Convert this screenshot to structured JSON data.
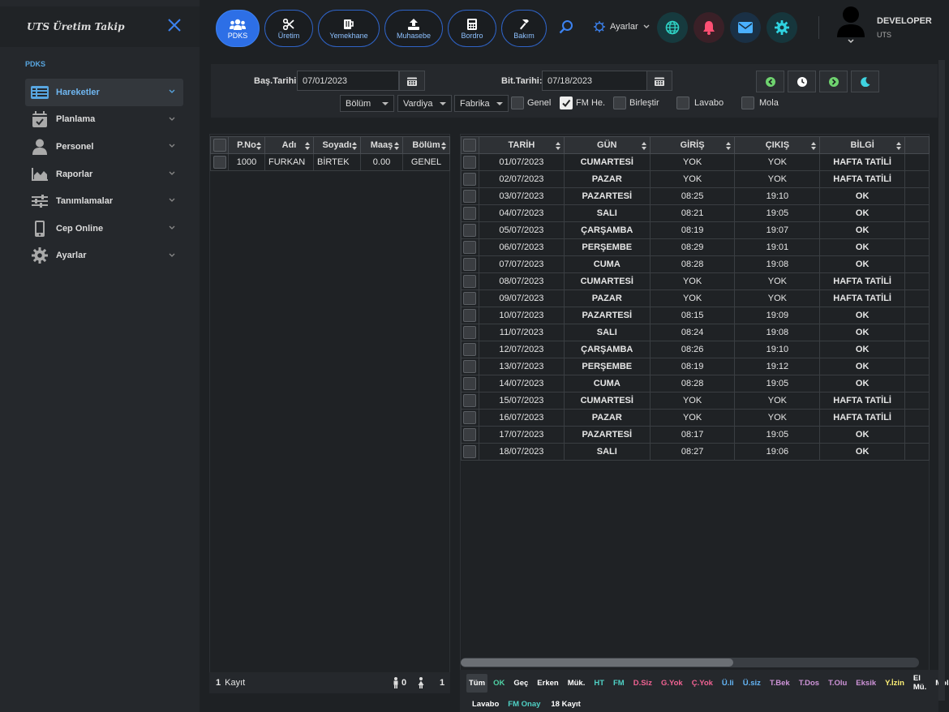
{
  "app": {
    "title": "UTS Üretim Takip"
  },
  "sidebar": {
    "section": "PDKS",
    "items": [
      {
        "label": "Hareketler",
        "icon": "list-icon",
        "active": true
      },
      {
        "label": "Planlama",
        "icon": "calendar-check-icon"
      },
      {
        "label": "Personel",
        "icon": "user-icon"
      },
      {
        "label": "Raporlar",
        "icon": "chart-area-icon"
      },
      {
        "label": "Tanımlamalar",
        "icon": "sliders-icon"
      },
      {
        "label": "Cep Online",
        "icon": "mobile-icon"
      },
      {
        "label": "Ayarlar",
        "icon": "gear-icon"
      }
    ]
  },
  "topnav": {
    "buttons": [
      {
        "label": "PDKS",
        "icon": "users-icon",
        "active": true
      },
      {
        "label": "Üretim",
        "icon": "scissors-icon"
      },
      {
        "label": "Yemekhane",
        "icon": "mug-icon"
      },
      {
        "label": "Muhasebe",
        "icon": "upload-icon"
      },
      {
        "label": "Bordro",
        "icon": "calculator-icon"
      },
      {
        "label": "Bakım",
        "icon": "hammer-icon"
      }
    ],
    "settings_label": "Ayarlar",
    "user": {
      "name": "DEVELOPER",
      "company": "UTS"
    }
  },
  "filters": {
    "start_label": "Baş.Tarihi:",
    "start_value": "07/01/2023",
    "end_label": "Bit.Tarihi:",
    "end_value": "07/18/2023",
    "dropdowns": [
      "Bölüm",
      "Vardiya",
      "Fabrika"
    ],
    "checks": [
      {
        "label": "Genel",
        "checked": false
      },
      {
        "label": "FM He.",
        "checked": true
      },
      {
        "label": "Birleştir",
        "checked": false
      },
      {
        "label": "Lavabo",
        "checked": false
      },
      {
        "label": "Mola",
        "checked": false
      }
    ]
  },
  "people": {
    "columns": [
      "P.No",
      "Adı",
      "Soyadı",
      "Maaş",
      "Bölüm"
    ],
    "rows": [
      [
        "1000",
        "FURKAN",
        "BİRTEK",
        "0.00",
        "GENEL"
      ]
    ],
    "footer_count": "1",
    "footer_label": "Kayıt",
    "male": "0",
    "female": "1"
  },
  "records": {
    "columns": [
      "TARİH",
      "GÜN",
      "GİRİŞ",
      "ÇIKIŞ",
      "BİLGİ"
    ],
    "rows": [
      [
        "01/07/2023",
        "CUMARTESİ",
        "YOK",
        "YOK",
        "HAFTA TATİLİ"
      ],
      [
        "02/07/2023",
        "PAZAR",
        "YOK",
        "YOK",
        "HAFTA TATİLİ"
      ],
      [
        "03/07/2023",
        "PAZARTESİ",
        "08:25",
        "19:10",
        "OK"
      ],
      [
        "04/07/2023",
        "SALI",
        "08:21",
        "19:05",
        "OK"
      ],
      [
        "05/07/2023",
        "ÇARŞAMBA",
        "08:19",
        "19:07",
        "OK"
      ],
      [
        "06/07/2023",
        "PERŞEMBE",
        "08:29",
        "19:01",
        "OK"
      ],
      [
        "07/07/2023",
        "CUMA",
        "08:28",
        "19:08",
        "OK"
      ],
      [
        "08/07/2023",
        "CUMARTESİ",
        "YOK",
        "YOK",
        "HAFTA TATİLİ"
      ],
      [
        "09/07/2023",
        "PAZAR",
        "YOK",
        "YOK",
        "HAFTA TATİLİ"
      ],
      [
        "10/07/2023",
        "PAZARTESİ",
        "08:15",
        "19:09",
        "OK"
      ],
      [
        "11/07/2023",
        "SALI",
        "08:24",
        "19:08",
        "OK"
      ],
      [
        "12/07/2023",
        "ÇARŞAMBA",
        "08:26",
        "19:10",
        "OK"
      ],
      [
        "13/07/2023",
        "PERŞEMBE",
        "08:19",
        "19:12",
        "OK"
      ],
      [
        "14/07/2023",
        "CUMA",
        "08:28",
        "19:05",
        "OK"
      ],
      [
        "15/07/2023",
        "CUMARTESİ",
        "YOK",
        "YOK",
        "HAFTA TATİLİ"
      ],
      [
        "16/07/2023",
        "PAZAR",
        "YOK",
        "YOK",
        "HAFTA TATİLİ"
      ],
      [
        "17/07/2023",
        "PAZARTESİ",
        "08:17",
        "19:05",
        "OK"
      ],
      [
        "18/07/2023",
        "SALI",
        "08:27",
        "19:06",
        "OK"
      ]
    ],
    "legend_row1": [
      {
        "label": "Tüm",
        "color": "#ffffff",
        "active": true
      },
      {
        "label": "OK",
        "color": "#4fd1a5"
      },
      {
        "label": "Geç",
        "color": "#ffffff"
      },
      {
        "label": "Erken",
        "color": "#ffffff"
      },
      {
        "label": "Mük.",
        "color": "#ffffff"
      },
      {
        "label": "HT",
        "color": "#4fd1c5"
      },
      {
        "label": "FM",
        "color": "#4fd1c5"
      },
      {
        "label": "D.Siz",
        "color": "#f06292"
      },
      {
        "label": "G.Yok",
        "color": "#f06292"
      },
      {
        "label": "Ç.Yok",
        "color": "#f06292"
      },
      {
        "label": "Ü.li",
        "color": "#64b5f6"
      },
      {
        "label": "Ü.siz",
        "color": "#64b5f6"
      },
      {
        "label": "T.Bek",
        "color": "#ce93d8"
      },
      {
        "label": "T.Dos",
        "color": "#ce93d8"
      },
      {
        "label": "T.Olu",
        "color": "#ce93d8"
      },
      {
        "label": "Eksik",
        "color": "#ce93d8"
      },
      {
        "label": "Y.İzin",
        "color": "#fff176"
      },
      {
        "label": "El Mü.",
        "color": "#ffffff"
      },
      {
        "label": "Mola",
        "color": "#ffffff"
      }
    ],
    "legend_row2": [
      {
        "label": "Lavabo",
        "color": "#ffffff"
      },
      {
        "label": "FM Onay",
        "color": "#4fd1c5"
      }
    ],
    "count_text": "18 Kayıt"
  }
}
